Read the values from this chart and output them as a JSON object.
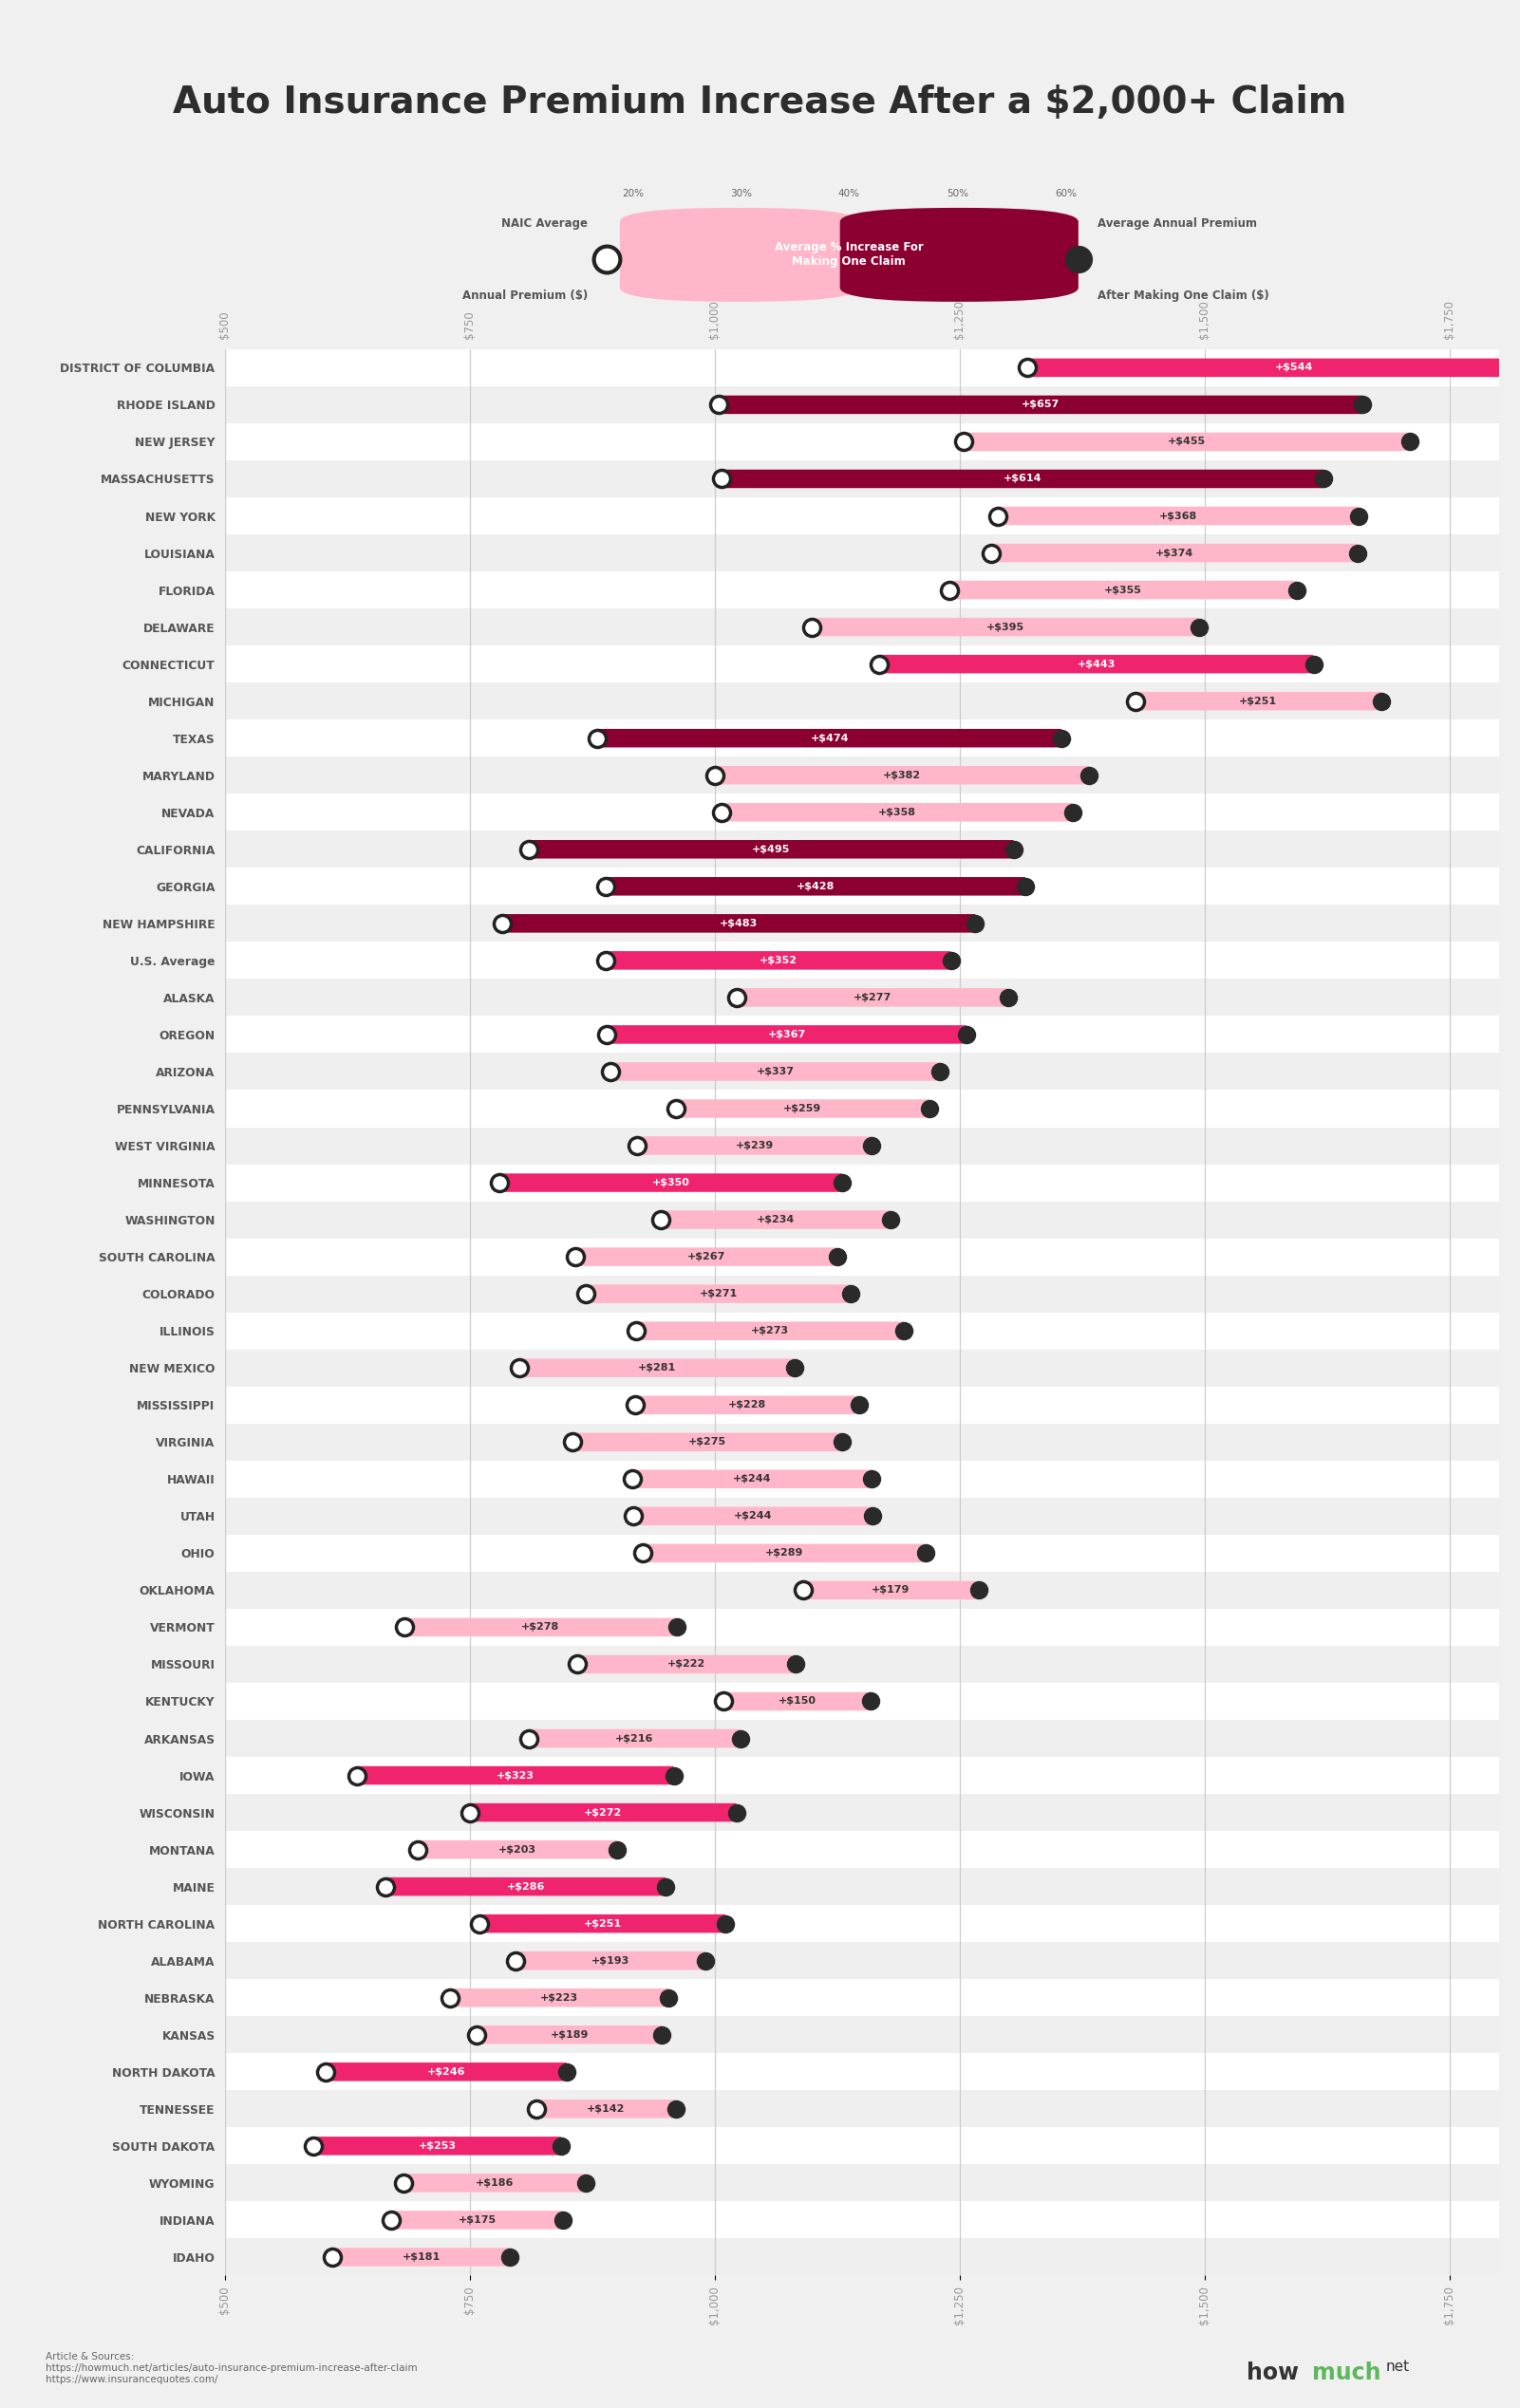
{
  "title": "Auto Insurance Premium Increase After a $2,000+ Claim",
  "states": [
    "DISTRICT OF COLUMBIA",
    "RHODE ISLAND",
    "NEW JERSEY",
    "MASSACHUSETTS",
    "NEW YORK",
    "LOUISIANA",
    "FLORIDA",
    "DELAWARE",
    "CONNECTICUT",
    "MICHIGAN",
    "TEXAS",
    "MARYLAND",
    "NEVADA",
    "CALIFORNIA",
    "GEORGIA",
    "NEW HAMPSHIRE",
    "U.S. Average",
    "ALASKA",
    "OREGON",
    "ARIZONA",
    "PENNSYLVANIA",
    "WEST VIRGINIA",
    "MINNESOTA",
    "WASHINGTON",
    "SOUTH CAROLINA",
    "COLORADO",
    "ILLINOIS",
    "NEW MEXICO",
    "MISSISSIPPI",
    "VIRGINIA",
    "HAWAII",
    "UTAH",
    "OHIO",
    "OKLAHOMA",
    "VERMONT",
    "MISSOURI",
    "KENTUCKY",
    "ARKANSAS",
    "IOWA",
    "WISCONSIN",
    "MONTANA",
    "MAINE",
    "NORTH CAROLINA",
    "ALABAMA",
    "NEBRASKA",
    "KANSAS",
    "NORTH DAKOTA",
    "TENNESSEE",
    "SOUTH DAKOTA",
    "WYOMING",
    "INDIANA",
    "IDAHO"
  ],
  "base_premium": [
    1319,
    1004,
    1254,
    1007,
    1289,
    1282,
    1239,
    1099,
    1168,
    1429,
    880,
    1000,
    1007,
    810,
    889,
    783,
    889,
    1022,
    890,
    893,
    960,
    921,
    780,
    945,
    858,
    868,
    920,
    800,
    919,
    855,
    916,
    917,
    926,
    1090,
    683,
    860,
    1009,
    810,
    635,
    750,
    697,
    664,
    760,
    797,
    730,
    757,
    603,
    818,
    590,
    682,
    670,
    610
  ],
  "increase": [
    544,
    657,
    455,
    614,
    368,
    374,
    355,
    395,
    443,
    251,
    474,
    382,
    358,
    495,
    428,
    483,
    352,
    277,
    367,
    337,
    259,
    239,
    350,
    234,
    267,
    271,
    273,
    281,
    228,
    275,
    244,
    244,
    289,
    179,
    278,
    222,
    150,
    216,
    323,
    272,
    203,
    286,
    251,
    193,
    223,
    189,
    246,
    142,
    253,
    186,
    175,
    181
  ],
  "bar_colors": [
    "#F0246E",
    "#8B0030",
    "#FFB6C8",
    "#8B0030",
    "#FFB6C8",
    "#FFB6C8",
    "#FFB6C8",
    "#FFB6C8",
    "#F0246E",
    "#FFB6C8",
    "#8B0030",
    "#FFB6C8",
    "#FFB6C8",
    "#8B0030",
    "#8B0030",
    "#8B0030",
    "#F0246E",
    "#FFB6C8",
    "#F0246E",
    "#FFB6C8",
    "#FFB6C8",
    "#FFB6C8",
    "#F0246E",
    "#FFB6C8",
    "#FFB6C8",
    "#FFB6C8",
    "#FFB6C8",
    "#FFB6C8",
    "#FFB6C8",
    "#FFB6C8",
    "#FFB6C8",
    "#FFB6C8",
    "#FFB6C8",
    "#FFB6C8",
    "#FFB6C8",
    "#FFB6C8",
    "#FFB6C8",
    "#FFB6C8",
    "#F0246E",
    "#F0246E",
    "#FFB6C8",
    "#F0246E",
    "#F0246E",
    "#FFB6C8",
    "#FFB6C8",
    "#FFB6C8",
    "#F0246E",
    "#FFB6C8",
    "#F0246E",
    "#FFB6C8",
    "#FFB6C8",
    "#FFB6C8"
  ],
  "x_ticks": [
    500,
    750,
    1000,
    1250,
    1500,
    1750
  ],
  "x_tick_labels": [
    "$500",
    "$750",
    "$1,000",
    "$1,250",
    "$1,500",
    "$1,750"
  ],
  "source_text": "Article & Sources:\nhttps://howmuch.net/articles/auto-insurance-premium-increase-after-claim\nhttps://www.insurancequotes.com/",
  "bg_color": "#f0f0f0",
  "legend_bg": "#e2e2e2",
  "row_colors": [
    "#efefef",
    "#ffffff"
  ],
  "grid_color": "#cccccc",
  "title_color": "#2d2d2d",
  "label_color": "#555555",
  "tick_color": "#999999"
}
